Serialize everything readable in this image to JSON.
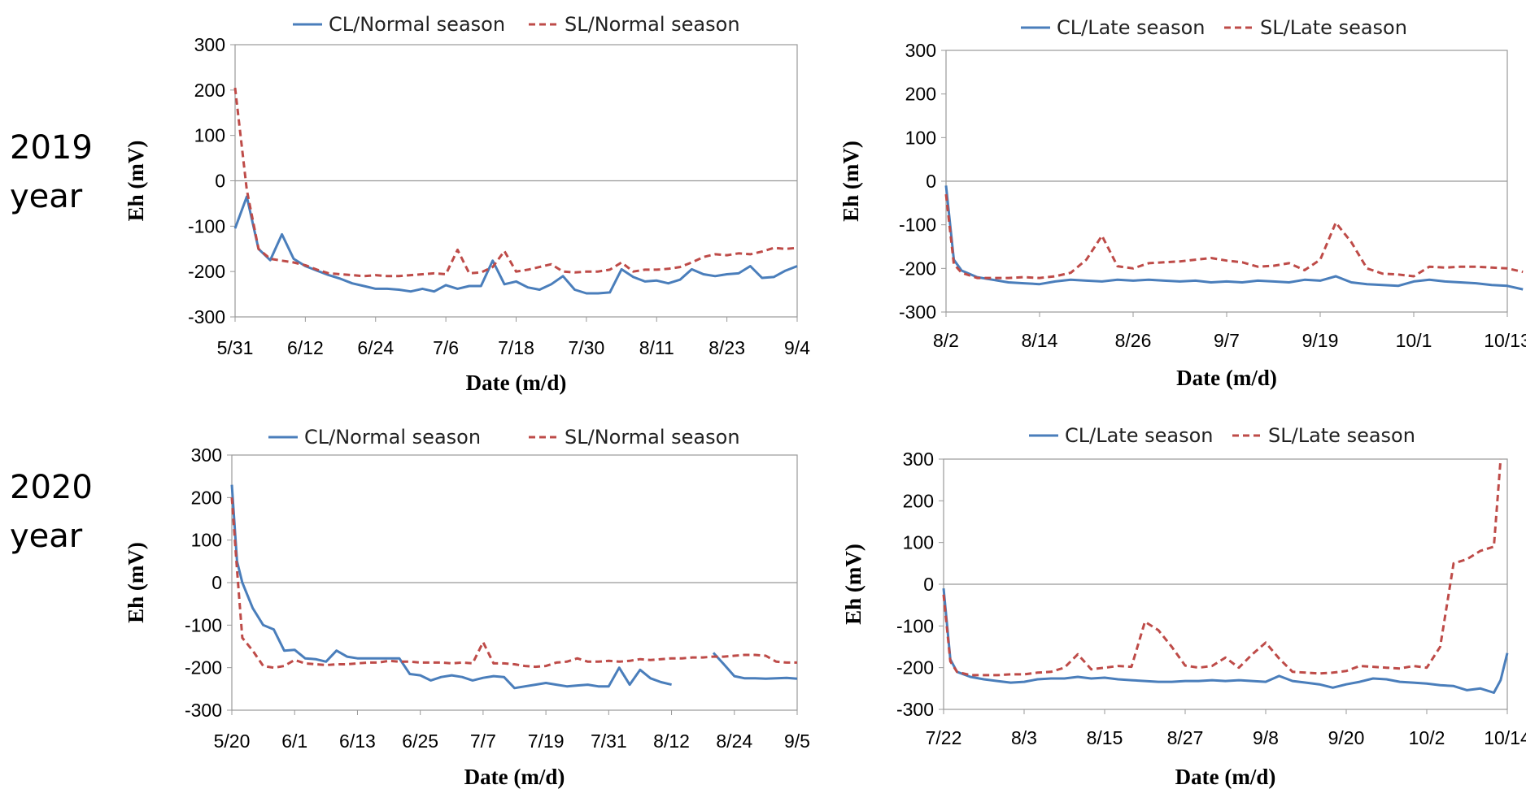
{
  "row_labels": [
    {
      "year": "2019",
      "suffix": "year"
    },
    {
      "year": "2020",
      "suffix": "year"
    }
  ],
  "colors": {
    "CL": "#4a7ebb",
    "SL": "#be4b48"
  },
  "chart_data": [
    {
      "type": "line",
      "ylabel": "Eh (mV)",
      "xlabel": "Date (m/d)",
      "ylim": [
        -300,
        300
      ],
      "yticks": [
        300,
        200,
        100,
        0,
        -100,
        -200,
        -300
      ],
      "x_tick_labels": [
        "5/31",
        "6/12",
        "6/24",
        "7/6",
        "7/18",
        "7/30",
        "8/11",
        "8/23",
        "9/4"
      ],
      "x_day_range": [
        0,
        96
      ],
      "series": [
        {
          "name": "CL/Normal season",
          "style": "solid",
          "x": [
            0,
            2,
            4,
            6,
            8,
            10,
            12,
            14,
            16,
            18,
            20,
            22,
            24,
            26,
            28,
            30,
            32,
            34,
            36,
            38,
            40,
            42,
            44,
            46,
            48,
            50,
            52,
            54,
            56,
            58,
            60,
            62,
            64,
            66,
            68,
            70,
            72,
            74,
            76,
            78,
            80,
            82,
            84,
            86,
            88,
            90,
            92,
            94,
            96
          ],
          "values": [
            -105,
            -35,
            -150,
            -175,
            -118,
            -172,
            -188,
            -198,
            -208,
            -216,
            -226,
            -232,
            -238,
            -238,
            -240,
            -244,
            -238,
            -244,
            -230,
            -238,
            -232,
            -232,
            -176,
            -228,
            -222,
            -235,
            -240,
            -228,
            -210,
            -240,
            -248,
            -248,
            -246,
            -195,
            -212,
            -222,
            -220,
            -226,
            -218,
            -195,
            -206,
            -210,
            -206,
            -204,
            -188,
            -214,
            -212,
            -198,
            -188
          ]
        },
        {
          "name": "SL/Normal season",
          "style": "dashed",
          "x": [
            0,
            2,
            4,
            6,
            8,
            10,
            12,
            14,
            16,
            18,
            20,
            22,
            24,
            26,
            28,
            30,
            32,
            34,
            36,
            38,
            40,
            42,
            44,
            46,
            48,
            50,
            52,
            54,
            56,
            58,
            60,
            62,
            64,
            66,
            68,
            70,
            72,
            74,
            76,
            78,
            80,
            82,
            84,
            86,
            88,
            90,
            92,
            94,
            96
          ],
          "values": [
            205,
            -20,
            -150,
            -172,
            -176,
            -180,
            -186,
            -196,
            -204,
            -206,
            -208,
            -210,
            -208,
            -210,
            -210,
            -208,
            -206,
            -204,
            -206,
            -152,
            -204,
            -202,
            -190,
            -155,
            -200,
            -196,
            -190,
            -184,
            -200,
            -202,
            -200,
            -200,
            -196,
            -180,
            -200,
            -196,
            -196,
            -194,
            -190,
            -180,
            -168,
            -162,
            -164,
            -160,
            -162,
            -156,
            -148,
            -150,
            -148
          ]
        }
      ]
    },
    {
      "type": "line",
      "ylabel": "Eh (mV)",
      "xlabel": "Date (m/d)",
      "ylim": [
        -300,
        300
      ],
      "yticks": [
        300,
        200,
        100,
        0,
        -100,
        -200,
        -300
      ],
      "x_tick_labels": [
        "8/2",
        "8/14",
        "8/26",
        "9/7",
        "9/19",
        "10/1",
        "10/13"
      ],
      "x_day_range": [
        0,
        72
      ],
      "series": [
        {
          "name": "CL/Late season",
          "style": "solid",
          "x": [
            0,
            1,
            2,
            4,
            6,
            8,
            10,
            12,
            14,
            16,
            18,
            20,
            22,
            24,
            26,
            28,
            30,
            32,
            34,
            36,
            38,
            40,
            42,
            44,
            46,
            48,
            50,
            52,
            54,
            56,
            58,
            60,
            62,
            64,
            66,
            68,
            70,
            72,
            74
          ],
          "values": [
            -10,
            -180,
            -205,
            -220,
            -226,
            -232,
            -234,
            -236,
            -230,
            -226,
            -228,
            -230,
            -226,
            -228,
            -226,
            -228,
            -230,
            -228,
            -232,
            -230,
            -232,
            -228,
            -230,
            -232,
            -226,
            -228,
            -218,
            -232,
            -236,
            -238,
            -240,
            -230,
            -226,
            -230,
            -232,
            -234,
            -238,
            -240,
            -248
          ]
        },
        {
          "name": "SL/Late season",
          "style": "dashed",
          "x": [
            0,
            1,
            2,
            4,
            6,
            8,
            10,
            12,
            14,
            16,
            18,
            20,
            22,
            24,
            26,
            28,
            30,
            32,
            34,
            36,
            38,
            40,
            42,
            44,
            46,
            48,
            50,
            52,
            54,
            56,
            58,
            60,
            62,
            64,
            66,
            68,
            70,
            72,
            74
          ],
          "values": [
            -30,
            -190,
            -210,
            -222,
            -222,
            -222,
            -220,
            -222,
            -218,
            -210,
            -180,
            -125,
            -195,
            -200,
            -188,
            -186,
            -184,
            -180,
            -176,
            -182,
            -186,
            -196,
            -194,
            -188,
            -204,
            -180,
            -95,
            -140,
            -200,
            -212,
            -214,
            -218,
            -196,
            -198,
            -196,
            -196,
            -198,
            -200,
            -208
          ]
        }
      ]
    },
    {
      "type": "line",
      "ylabel": "Eh (mV)",
      "xlabel": "Date (m/d)",
      "ylim": [
        -300,
        300
      ],
      "yticks": [
        300,
        200,
        100,
        0,
        -100,
        -200,
        -300
      ],
      "x_tick_labels": [
        "5/20",
        "6/1",
        "6/13",
        "6/25",
        "7/7",
        "7/19",
        "7/31",
        "8/12",
        "8/24",
        "9/5"
      ],
      "x_day_range": [
        0,
        108
      ],
      "series": [
        {
          "name": "CL/Normal season",
          "style": "solid",
          "x": [
            0,
            1,
            2,
            4,
            6,
            8,
            10,
            12,
            14,
            16,
            18,
            20,
            22,
            24,
            26,
            28,
            30,
            32,
            34,
            36,
            38,
            40,
            42,
            44,
            46,
            48,
            50,
            52,
            54,
            56,
            58,
            60,
            62,
            64,
            66,
            68,
            70,
            72,
            74,
            76,
            78,
            80,
            82,
            84,
            null,
            92,
            94,
            96,
            98,
            100,
            102,
            104,
            106,
            108
          ],
          "values": [
            230,
            50,
            0,
            -60,
            -100,
            -110,
            -160,
            -158,
            -178,
            -180,
            -186,
            -160,
            -174,
            -178,
            -178,
            -178,
            -178,
            -178,
            -215,
            -218,
            -230,
            -222,
            -218,
            -222,
            -230,
            -224,
            -220,
            -222,
            -248,
            -244,
            -240,
            -236,
            -240,
            -244,
            -242,
            -240,
            -244,
            -244,
            -200,
            -240,
            -205,
            -225,
            -234,
            -240,
            null,
            -165,
            -192,
            -220,
            -225,
            -225,
            -226,
            -225,
            -224,
            -226
          ]
        },
        {
          "name": "SL/Normal season",
          "style": "dashed",
          "x": [
            0,
            1,
            2,
            4,
            6,
            8,
            10,
            12,
            14,
            16,
            18,
            20,
            22,
            24,
            26,
            28,
            30,
            32,
            34,
            36,
            38,
            40,
            42,
            44,
            46,
            48,
            50,
            52,
            54,
            56,
            58,
            60,
            62,
            64,
            66,
            68,
            70,
            72,
            74,
            76,
            78,
            80,
            82,
            84,
            86,
            88,
            90,
            92,
            94,
            96,
            98,
            100,
            102,
            104,
            106,
            108
          ],
          "values": [
            200,
            30,
            -130,
            -160,
            -196,
            -200,
            -196,
            -182,
            -190,
            -192,
            -194,
            -192,
            -192,
            -190,
            -188,
            -188,
            -184,
            -186,
            -186,
            -188,
            -188,
            -188,
            -190,
            -188,
            -190,
            -140,
            -190,
            -190,
            -192,
            -196,
            -198,
            -196,
            -188,
            -186,
            -178,
            -186,
            -186,
            -184,
            -186,
            -184,
            -180,
            -182,
            -180,
            -178,
            -178,
            -176,
            -176,
            -174,
            -174,
            -172,
            -170,
            -170,
            -172,
            -186,
            -188,
            -188
          ]
        }
      ]
    },
    {
      "type": "line",
      "ylabel": "Eh (mV)",
      "xlabel": "Date (m/d)",
      "ylim": [
        -300,
        300
      ],
      "yticks": [
        300,
        200,
        100,
        0,
        -100,
        -200,
        -300
      ],
      "x_tick_labels": [
        "7/22",
        "8/3",
        "8/15",
        "8/27",
        "9/8",
        "9/20",
        "10/2",
        "10/14"
      ],
      "x_day_range": [
        0,
        84
      ],
      "series": [
        {
          "name": "CL/Late season",
          "style": "solid",
          "x": [
            0,
            1,
            2,
            4,
            6,
            8,
            10,
            12,
            14,
            16,
            18,
            20,
            22,
            24,
            26,
            28,
            30,
            32,
            34,
            36,
            38,
            40,
            42,
            44,
            46,
            48,
            50,
            52,
            54,
            56,
            58,
            60,
            62,
            64,
            66,
            68,
            70,
            72,
            74,
            76,
            78,
            80,
            82,
            83,
            84
          ],
          "values": [
            -10,
            -180,
            -210,
            -222,
            -228,
            -232,
            -236,
            -234,
            -228,
            -226,
            -226,
            -222,
            -226,
            -224,
            -228,
            -230,
            -232,
            -234,
            -234,
            -232,
            -232,
            -230,
            -232,
            -230,
            -232,
            -234,
            -220,
            -232,
            -236,
            -240,
            -248,
            -240,
            -234,
            -226,
            -228,
            -234,
            -236,
            -238,
            -242,
            -244,
            -254,
            -250,
            -260,
            -230,
            -165
          ]
        },
        {
          "name": "SL/Late season",
          "style": "dashed",
          "x": [
            0,
            1,
            2,
            4,
            6,
            8,
            10,
            12,
            14,
            16,
            18,
            20,
            22,
            24,
            26,
            28,
            30,
            32,
            34,
            36,
            38,
            40,
            42,
            44,
            46,
            48,
            50,
            52,
            54,
            56,
            58,
            60,
            62,
            64,
            66,
            68,
            70,
            72,
            74,
            76,
            78,
            80,
            82,
            83
          ],
          "values": [
            -25,
            -185,
            -210,
            -218,
            -218,
            -218,
            -216,
            -216,
            -212,
            -210,
            -200,
            -168,
            -204,
            -200,
            -196,
            -198,
            -90,
            -110,
            -150,
            -195,
            -200,
            -196,
            -176,
            -200,
            -168,
            -140,
            -178,
            -210,
            -212,
            -214,
            -212,
            -208,
            -196,
            -198,
            -200,
            -202,
            -196,
            -200,
            -150,
            50,
            60,
            80,
            90,
            300
          ]
        }
      ]
    }
  ]
}
